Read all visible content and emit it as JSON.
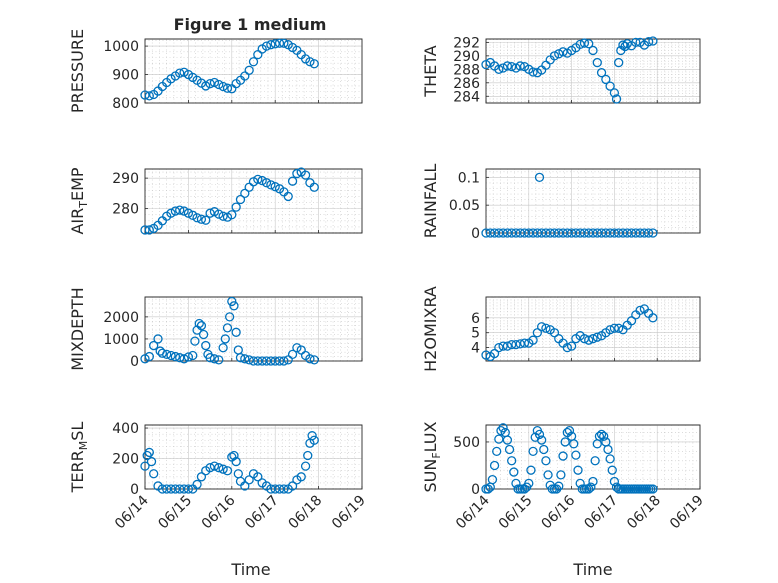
{
  "figure_title": "Figure 1 medium",
  "colors": {
    "marker": "#0072bd",
    "frame": "#262626",
    "grid": "#c8c8c8"
  },
  "chart_data": [
    {
      "type": "scatter",
      "ylabel": "PRESSURE",
      "title": "Figure 1 medium",
      "x_ticks": [
        "06/14",
        "06/15",
        "06/16",
        "06/17",
        "06/18",
        "06/19"
      ],
      "show_x_tick_labels": false,
      "xlim": [
        0,
        5
      ],
      "ylim": [
        800,
        1025
      ],
      "yticks": [
        800,
        900,
        1000
      ],
      "grid": true,
      "x": [
        0,
        0.1,
        0.2,
        0.3,
        0.4,
        0.5,
        0.6,
        0.7,
        0.8,
        0.9,
        1.0,
        1.1,
        1.2,
        1.3,
        1.4,
        1.5,
        1.6,
        1.7,
        1.8,
        1.9,
        2.0,
        2.1,
        2.2,
        2.3,
        2.4,
        2.5,
        2.6,
        2.7,
        2.8,
        2.9,
        3.0,
        3.1,
        3.2,
        3.3,
        3.4,
        3.5,
        3.6,
        3.7,
        3.8,
        3.9
      ],
      "y": [
        828,
        825,
        830,
        842,
        858,
        872,
        885,
        895,
        905,
        908,
        900,
        890,
        880,
        870,
        860,
        868,
        872,
        865,
        858,
        852,
        850,
        868,
        880,
        895,
        915,
        945,
        970,
        990,
        1000,
        1005,
        1008,
        1010,
        1010,
        1005,
        995,
        985,
        970,
        955,
        945,
        938
      ]
    },
    {
      "type": "scatter",
      "ylabel": "THETA",
      "x_ticks": [
        "06/14",
        "06/15",
        "06/16",
        "06/17",
        "06/18",
        "06/19"
      ],
      "show_x_tick_labels": false,
      "xlim": [
        0,
        5
      ],
      "ylim": [
        283,
        292.5
      ],
      "yticks": [
        284,
        286,
        288,
        290,
        292
      ],
      "grid": true,
      "x": [
        0,
        0.1,
        0.2,
        0.3,
        0.4,
        0.5,
        0.6,
        0.7,
        0.8,
        0.9,
        1.0,
        1.1,
        1.2,
        1.3,
        1.4,
        1.5,
        1.6,
        1.7,
        1.8,
        1.9,
        2.0,
        2.1,
        2.2,
        2.3,
        2.4,
        2.5,
        2.6,
        2.7,
        2.8,
        2.9,
        3.0,
        3.05,
        3.1,
        3.15,
        3.2,
        3.25,
        3.3,
        3.4,
        3.5,
        3.6,
        3.7,
        3.8,
        3.9
      ],
      "y": [
        288.7,
        289.0,
        288.5,
        288.0,
        288.2,
        288.5,
        288.4,
        288.2,
        288.5,
        288.4,
        288.0,
        287.6,
        287.5,
        287.9,
        288.6,
        289.4,
        290.0,
        290.3,
        290.6,
        290.4,
        290.8,
        291.2,
        291.7,
        291.9,
        291.8,
        290.8,
        289.0,
        287.5,
        286.5,
        285.5,
        284.5,
        283.6,
        289.0,
        290.8,
        291.6,
        291.4,
        291.8,
        291.5,
        292.0,
        292.0,
        291.6,
        292.1,
        292.2
      ]
    },
    {
      "type": "scatter",
      "ylabel": "AIR_TEMP",
      "ylabel_display": {
        "base": "AIR",
        "sub": "T",
        "rest": "EMP"
      },
      "x_ticks": [
        "06/14",
        "06/15",
        "06/16",
        "06/17",
        "06/18",
        "06/19"
      ],
      "show_x_tick_labels": false,
      "xlim": [
        0,
        5
      ],
      "ylim": [
        272,
        293
      ],
      "yticks": [
        280,
        290
      ],
      "grid": true,
      "x": [
        0,
        0.1,
        0.2,
        0.3,
        0.4,
        0.5,
        0.6,
        0.7,
        0.8,
        0.9,
        1.0,
        1.1,
        1.2,
        1.3,
        1.4,
        1.5,
        1.6,
        1.7,
        1.8,
        1.9,
        2.0,
        2.1,
        2.2,
        2.3,
        2.4,
        2.5,
        2.6,
        2.7,
        2.8,
        2.9,
        3.0,
        3.1,
        3.2,
        3.3,
        3.4,
        3.5,
        3.6,
        3.7,
        3.8,
        3.9
      ],
      "y": [
        273,
        273,
        273.5,
        274.5,
        276,
        277.5,
        278.5,
        279.2,
        279.5,
        279.2,
        278.5,
        277.8,
        277,
        276.5,
        276.2,
        278.5,
        279,
        278.2,
        277.5,
        277.2,
        278,
        280.5,
        283,
        285,
        287,
        288.8,
        289.6,
        289.2,
        288.5,
        287.8,
        287.2,
        286.5,
        285.5,
        284,
        289,
        291.5,
        292,
        291,
        288.5,
        287
      ]
    },
    {
      "type": "scatter",
      "ylabel": "RAINFALL",
      "x_ticks": [
        "06/14",
        "06/15",
        "06/16",
        "06/17",
        "06/18",
        "06/19"
      ],
      "show_x_tick_labels": false,
      "xlim": [
        0,
        5
      ],
      "ylim": [
        0,
        0.115
      ],
      "yticks": [
        0,
        0.05,
        0.1
      ],
      "ytick_labels": [
        "0",
        "0.05",
        "0.1"
      ],
      "grid": true,
      "x": [
        0,
        0.1,
        0.2,
        0.3,
        0.4,
        0.5,
        0.6,
        0.7,
        0.8,
        0.9,
        1.0,
        1.1,
        1.2,
        1.3,
        1.4,
        1.5,
        1.6,
        1.7,
        1.8,
        1.9,
        2.0,
        2.1,
        2.2,
        2.3,
        2.4,
        2.5,
        2.6,
        2.7,
        2.8,
        2.9,
        3.0,
        3.1,
        3.2,
        3.3,
        3.4,
        3.5,
        3.6,
        3.7,
        3.8,
        3.9,
        1.25
      ],
      "y": [
        0,
        0,
        0,
        0,
        0,
        0,
        0,
        0,
        0,
        0,
        0,
        0,
        0,
        0,
        0,
        0,
        0,
        0,
        0,
        0,
        0,
        0,
        0,
        0,
        0,
        0,
        0,
        0,
        0,
        0,
        0,
        0,
        0,
        0,
        0,
        0,
        0,
        0,
        0,
        0,
        0.1
      ]
    },
    {
      "type": "scatter",
      "ylabel": "MIXDEPTH",
      "x_ticks": [
        "06/14",
        "06/15",
        "06/16",
        "06/17",
        "06/18",
        "06/19"
      ],
      "show_x_tick_labels": false,
      "xlim": [
        0,
        5
      ],
      "ylim": [
        0,
        2900
      ],
      "yticks": [
        0,
        1000,
        2000
      ],
      "grid": true,
      "x": [
        0,
        0.1,
        0.2,
        0.3,
        0.35,
        0.4,
        0.5,
        0.6,
        0.7,
        0.8,
        0.9,
        1.0,
        1.1,
        1.15,
        1.2,
        1.25,
        1.3,
        1.35,
        1.4,
        1.45,
        1.5,
        1.6,
        1.7,
        1.8,
        1.85,
        1.9,
        1.95,
        2.0,
        2.05,
        2.1,
        2.15,
        2.2,
        2.3,
        2.4,
        2.5,
        2.6,
        2.7,
        2.8,
        2.9,
        3.0,
        3.1,
        3.2,
        3.3,
        3.4,
        3.5,
        3.6,
        3.7,
        3.8,
        3.9
      ],
      "y": [
        100,
        200,
        700,
        1000,
        450,
        350,
        300,
        250,
        200,
        150,
        100,
        180,
        250,
        900,
        1400,
        1700,
        1600,
        1200,
        700,
        300,
        150,
        100,
        50,
        600,
        1000,
        1500,
        2000,
        2700,
        2500,
        1300,
        500,
        150,
        100,
        50,
        0,
        0,
        0,
        0,
        0,
        0,
        0,
        0,
        50,
        300,
        600,
        500,
        250,
        100,
        50
      ]
    },
    {
      "type": "scatter",
      "ylabel": "H2OMIXRA",
      "x_ticks": [
        "06/14",
        "06/15",
        "06/16",
        "06/17",
        "06/18",
        "06/19"
      ],
      "show_x_tick_labels": false,
      "xlim": [
        0,
        5
      ],
      "ylim": [
        3.1,
        7.4
      ],
      "yticks": [
        4,
        5,
        6
      ],
      "grid": true,
      "x": [
        0,
        0.1,
        0.2,
        0.3,
        0.4,
        0.5,
        0.6,
        0.7,
        0.8,
        0.9,
        1.0,
        1.1,
        1.2,
        1.3,
        1.4,
        1.5,
        1.6,
        1.7,
        1.8,
        1.9,
        2.0,
        2.1,
        2.2,
        2.3,
        2.4,
        2.5,
        2.6,
        2.7,
        2.8,
        2.9,
        3.0,
        3.1,
        3.2,
        3.3,
        3.4,
        3.5,
        3.6,
        3.7,
        3.8,
        3.9
      ],
      "y": [
        3.5,
        3.4,
        3.6,
        4.0,
        4.1,
        4.1,
        4.2,
        4.2,
        4.25,
        4.3,
        4.3,
        4.5,
        5.0,
        5.4,
        5.3,
        5.2,
        5.0,
        4.6,
        4.3,
        4.0,
        4.1,
        4.6,
        4.8,
        4.6,
        4.5,
        4.6,
        4.7,
        4.8,
        5.0,
        5.2,
        5.3,
        5.3,
        5.2,
        5.5,
        5.8,
        6.2,
        6.5,
        6.6,
        6.3,
        6.0
      ]
    },
    {
      "type": "scatter",
      "ylabel": "TERR_MSL",
      "ylabel_display": {
        "base": "TERR",
        "sub": "M",
        "rest": "SL"
      },
      "xlabel": "Time",
      "x_ticks": [
        "06/14",
        "06/15",
        "06/16",
        "06/17",
        "06/18",
        "06/19"
      ],
      "show_x_tick_labels": true,
      "xlim": [
        0,
        5
      ],
      "ylim": [
        0,
        420
      ],
      "yticks": [
        0,
        200,
        400
      ],
      "grid": true,
      "x": [
        0,
        0.05,
        0.1,
        0.15,
        0.2,
        0.3,
        0.4,
        0.5,
        0.6,
        0.7,
        0.8,
        0.9,
        1.0,
        1.1,
        1.2,
        1.3,
        1.4,
        1.5,
        1.6,
        1.7,
        1.8,
        1.9,
        2.0,
        2.05,
        2.1,
        2.15,
        2.2,
        2.3,
        2.4,
        2.5,
        2.6,
        2.7,
        2.8,
        2.9,
        3.0,
        3.1,
        3.2,
        3.3,
        3.4,
        3.5,
        3.6,
        3.7,
        3.75,
        3.8,
        3.85,
        3.9
      ],
      "y": [
        150,
        220,
        240,
        180,
        100,
        20,
        0,
        0,
        0,
        0,
        0,
        0,
        0,
        0,
        30,
        80,
        120,
        140,
        150,
        140,
        130,
        120,
        210,
        220,
        180,
        100,
        50,
        20,
        60,
        100,
        80,
        40,
        20,
        0,
        0,
        0,
        0,
        0,
        20,
        60,
        80,
        150,
        220,
        300,
        350,
        320
      ]
    },
    {
      "type": "scatter",
      "ylabel": "SUN_FLUX",
      "ylabel_display": {
        "base": "SUN",
        "sub": "F",
        "rest": "LUX"
      },
      "xlabel": "Time",
      "x_ticks": [
        "06/14",
        "06/15",
        "06/16",
        "06/17",
        "06/18",
        "06/19"
      ],
      "show_x_tick_labels": true,
      "xlim": [
        0,
        5
      ],
      "ylim": [
        0,
        680
      ],
      "yticks": [
        0,
        500
      ],
      "grid": true,
      "x": [
        0,
        0.05,
        0.1,
        0.15,
        0.2,
        0.25,
        0.3,
        0.35,
        0.4,
        0.45,
        0.5,
        0.55,
        0.6,
        0.65,
        0.7,
        0.75,
        0.8,
        0.85,
        0.9,
        0.95,
        1.0,
        1.05,
        1.1,
        1.15,
        1.2,
        1.25,
        1.3,
        1.35,
        1.4,
        1.45,
        1.5,
        1.55,
        1.6,
        1.65,
        1.7,
        1.75,
        1.8,
        1.85,
        1.9,
        1.95,
        2.0,
        2.05,
        2.1,
        2.15,
        2.2,
        2.25,
        2.3,
        2.35,
        2.4,
        2.45,
        2.5,
        2.55,
        2.6,
        2.65,
        2.7,
        2.75,
        2.8,
        2.85,
        2.9,
        2.95,
        3.0,
        3.05,
        3.1,
        3.15,
        3.2,
        3.25,
        3.3,
        3.35,
        3.4,
        3.45,
        3.5,
        3.55,
        3.6,
        3.65,
        3.7,
        3.75,
        3.8,
        3.85,
        3.9
      ],
      "y": [
        0,
        0,
        20,
        100,
        250,
        400,
        530,
        620,
        650,
        600,
        520,
        420,
        300,
        180,
        60,
        0,
        0,
        0,
        0,
        20,
        60,
        200,
        400,
        550,
        620,
        580,
        520,
        420,
        300,
        150,
        40,
        0,
        0,
        0,
        30,
        150,
        350,
        500,
        600,
        620,
        560,
        480,
        360,
        200,
        60,
        0,
        0,
        0,
        0,
        20,
        80,
        300,
        480,
        560,
        580,
        560,
        500,
        420,
        320,
        200,
        80,
        20,
        0,
        0,
        0,
        0,
        0,
        0,
        0,
        0,
        0,
        0,
        0,
        0,
        0,
        0,
        0,
        0,
        0
      ]
    }
  ]
}
